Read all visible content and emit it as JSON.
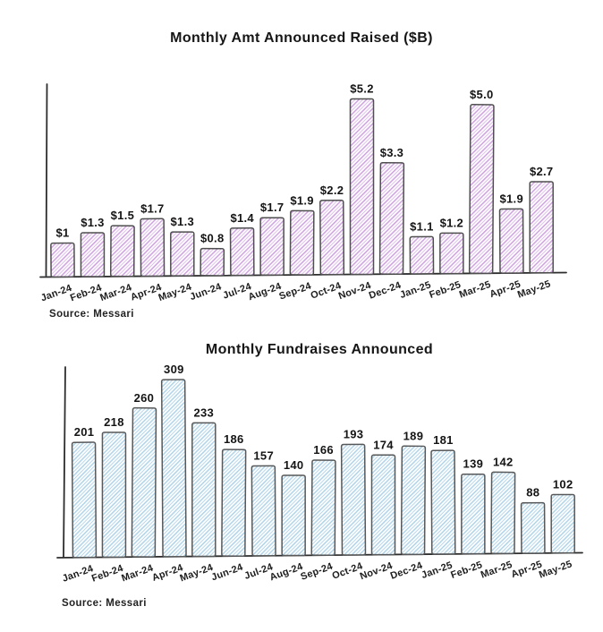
{
  "chart_data": [
    {
      "type": "bar",
      "title": "Monthly Amt Announced Raised ($B)",
      "source": "Source: Messari",
      "categories": [
        "Jan-24",
        "Feb-24",
        "Mar-24",
        "Apr-24",
        "May-24",
        "Jun-24",
        "Jul-24",
        "Aug-24",
        "Sep-24",
        "Oct-24",
        "Nov-24",
        "Dec-24",
        "Jan-25",
        "Feb-25",
        "Mar-25",
        "Apr-25",
        "May-25"
      ],
      "values": [
        1.0,
        1.3,
        1.5,
        1.7,
        1.3,
        0.8,
        1.4,
        1.7,
        1.9,
        2.2,
        5.2,
        3.3,
        1.1,
        1.2,
        5.0,
        1.9,
        2.7
      ],
      "value_labels": [
        "$1",
        "$1.3",
        "$1.5",
        "$1.7",
        "$1.3",
        "$0.8",
        "$1.4",
        "$1.7",
        "$1.9",
        "$2.2",
        "$5.2",
        "$3.3",
        "$1.1",
        "$1.2",
        "$5.0",
        "$1.9",
        "$2.7"
      ],
      "xlabel": "",
      "ylabel": "",
      "ylim": [
        0,
        5.5
      ],
      "grid": false,
      "legend": null,
      "style": {
        "hatch_color": "#cc9fde",
        "hatch_accent": "#a964c6",
        "bar_fill_bg": "#fefcff",
        "bar_outline": "#4f4f4f",
        "axis_color": "#2d2d2d",
        "text_color": "#161616"
      }
    },
    {
      "type": "bar",
      "title": "Monthly Fundraises Announced",
      "source": "Source: Messari",
      "categories": [
        "Jan-24",
        "Feb-24",
        "Mar-24",
        "Apr-24",
        "May-24",
        "Jun-24",
        "Jul-24",
        "Aug-24",
        "Sep-24",
        "Oct-24",
        "Nov-24",
        "Dec-24",
        "Jan-25",
        "Feb-25",
        "Mar-25",
        "Apr-25",
        "May-25"
      ],
      "values": [
        201,
        218,
        260,
        309,
        233,
        186,
        157,
        140,
        166,
        193,
        174,
        189,
        181,
        139,
        142,
        88,
        102
      ],
      "value_labels": [
        "201",
        "218",
        "260",
        "309",
        "233",
        "186",
        "157",
        "140",
        "166",
        "193",
        "174",
        "189",
        "181",
        "139",
        "142",
        "88",
        "102"
      ],
      "xlabel": "",
      "ylabel": "",
      "ylim": [
        0,
        320
      ],
      "grid": false,
      "legend": null,
      "style": {
        "hatch_color": "#aed2e7",
        "hatch_accent": "#4f97c8",
        "bar_fill_bg": "#fcfeff",
        "bar_outline": "#575859",
        "axis_color": "#2d2d2d",
        "text_color": "#161616"
      }
    }
  ]
}
